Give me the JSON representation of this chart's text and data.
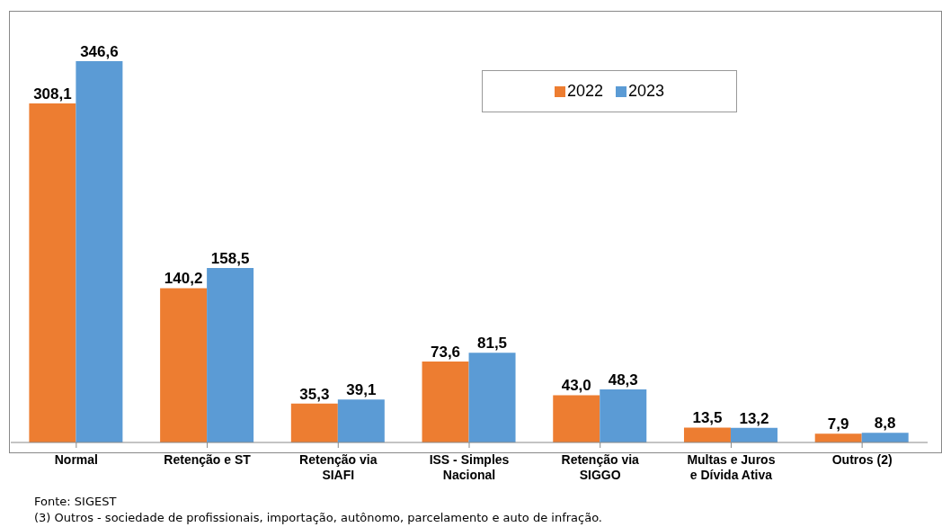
{
  "chart_data": {
    "type": "bar",
    "categories": [
      "Normal",
      "Retenção e ST",
      "Retenção via SIAFI",
      "ISS - Simples Nacional",
      "Retenção via SIGGO",
      "Multas e Juros e Dívida Ativa",
      "Outros (2)"
    ],
    "series": [
      {
        "name": "2022",
        "color": "#ed7d31",
        "values": [
          308.1,
          140.2,
          35.3,
          73.6,
          43.0,
          13.5,
          7.9
        ],
        "value_labels": [
          "308,1",
          "140,2",
          "35,3",
          "73,6",
          "43,0",
          "13,5",
          "7,9"
        ]
      },
      {
        "name": "2023",
        "color": "#5b9bd5",
        "values": [
          346.6,
          158.5,
          39.1,
          81.5,
          48.3,
          13.2,
          8.8
        ],
        "value_labels": [
          "346,6",
          "158,5",
          "39,1",
          "81,5",
          "48,3",
          "13,2",
          "8,8"
        ]
      }
    ],
    "legend": "top right",
    "grid": false,
    "annotations": [
      "Fonte: SIGEST",
      "(3) Outros - sociedade de profissionais, importação, autônomo, parcelamento e auto de infração."
    ]
  }
}
